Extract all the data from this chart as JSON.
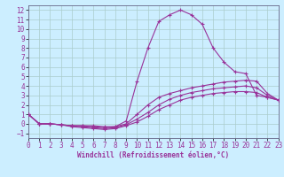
{
  "xlabel": "Windchill (Refroidissement éolien,°C)",
  "background_color": "#cceeff",
  "line_color": "#993399",
  "grid_color": "#aacccc",
  "xlim": [
    0,
    23
  ],
  "ylim": [
    -1.5,
    12.5
  ],
  "xticks": [
    0,
    1,
    2,
    3,
    4,
    5,
    6,
    7,
    8,
    9,
    10,
    11,
    12,
    13,
    14,
    15,
    16,
    17,
    18,
    19,
    20,
    21,
    22,
    23
  ],
  "yticks": [
    -1,
    0,
    1,
    2,
    3,
    4,
    5,
    6,
    7,
    8,
    9,
    10,
    11,
    12
  ],
  "lines": [
    {
      "x": [
        0,
        1,
        2,
        3,
        4,
        5,
        6,
        7,
        8,
        9,
        10,
        11,
        12,
        13,
        14,
        15,
        16,
        17,
        18,
        19,
        20,
        21,
        22,
        23
      ],
      "y": [
        1.0,
        0.0,
        0.0,
        -0.1,
        -0.2,
        -0.2,
        -0.2,
        -0.3,
        -0.3,
        0.3,
        4.5,
        8.0,
        10.8,
        11.5,
        12.0,
        11.5,
        10.5,
        8.0,
        6.5,
        5.5,
        5.3,
        3.0,
        2.8,
        2.5
      ]
    },
    {
      "x": [
        0,
        1,
        2,
        3,
        4,
        5,
        6,
        7,
        8,
        9,
        10,
        11,
        12,
        13,
        14,
        15,
        16,
        17,
        18,
        19,
        20,
        21,
        22,
        23
      ],
      "y": [
        1.0,
        0.0,
        0.0,
        -0.1,
        -0.2,
        -0.2,
        -0.3,
        -0.4,
        -0.3,
        0.0,
        1.0,
        2.0,
        2.8,
        3.2,
        3.5,
        3.8,
        4.0,
        4.2,
        4.4,
        4.5,
        4.6,
        4.5,
        3.2,
        2.5
      ]
    },
    {
      "x": [
        0,
        1,
        2,
        3,
        4,
        5,
        6,
        7,
        8,
        9,
        10,
        11,
        12,
        13,
        14,
        15,
        16,
        17,
        18,
        19,
        20,
        21,
        22,
        23
      ],
      "y": [
        1.0,
        0.0,
        0.0,
        -0.1,
        -0.2,
        -0.3,
        -0.4,
        -0.5,
        -0.4,
        -0.1,
        0.5,
        1.2,
        2.0,
        2.6,
        3.0,
        3.3,
        3.5,
        3.7,
        3.8,
        3.9,
        4.0,
        3.8,
        3.0,
        2.5
      ]
    },
    {
      "x": [
        0,
        1,
        2,
        3,
        4,
        5,
        6,
        7,
        8,
        9,
        10,
        11,
        12,
        13,
        14,
        15,
        16,
        17,
        18,
        19,
        20,
        21,
        22,
        23
      ],
      "y": [
        1.0,
        0.0,
        0.0,
        -0.1,
        -0.3,
        -0.4,
        -0.5,
        -0.6,
        -0.5,
        -0.2,
        0.2,
        0.8,
        1.5,
        2.0,
        2.5,
        2.8,
        3.0,
        3.2,
        3.3,
        3.4,
        3.4,
        3.3,
        2.8,
        2.5
      ]
    }
  ]
}
